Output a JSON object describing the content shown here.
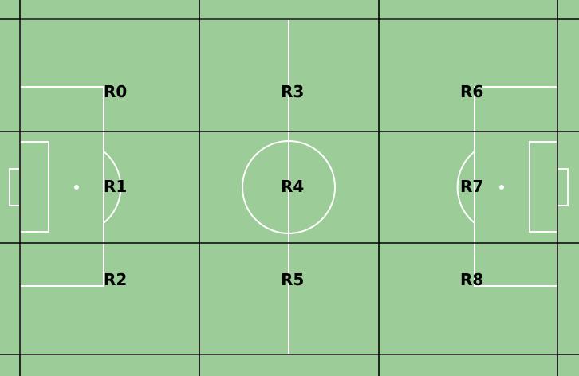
{
  "colors": {
    "field": "#9ccc98",
    "pitch_lines": "#ffffff",
    "grid_lines": "#000000",
    "label_text": "#000000"
  },
  "regions": [
    {
      "id": "R0",
      "label": "R0"
    },
    {
      "id": "R1",
      "label": "R1"
    },
    {
      "id": "R2",
      "label": "R2"
    },
    {
      "id": "R3",
      "label": "R3"
    },
    {
      "id": "R4",
      "label": "R4"
    },
    {
      "id": "R5",
      "label": "R5"
    },
    {
      "id": "R6",
      "label": "R6"
    },
    {
      "id": "R7",
      "label": "R7"
    },
    {
      "id": "R8",
      "label": "R8"
    }
  ]
}
